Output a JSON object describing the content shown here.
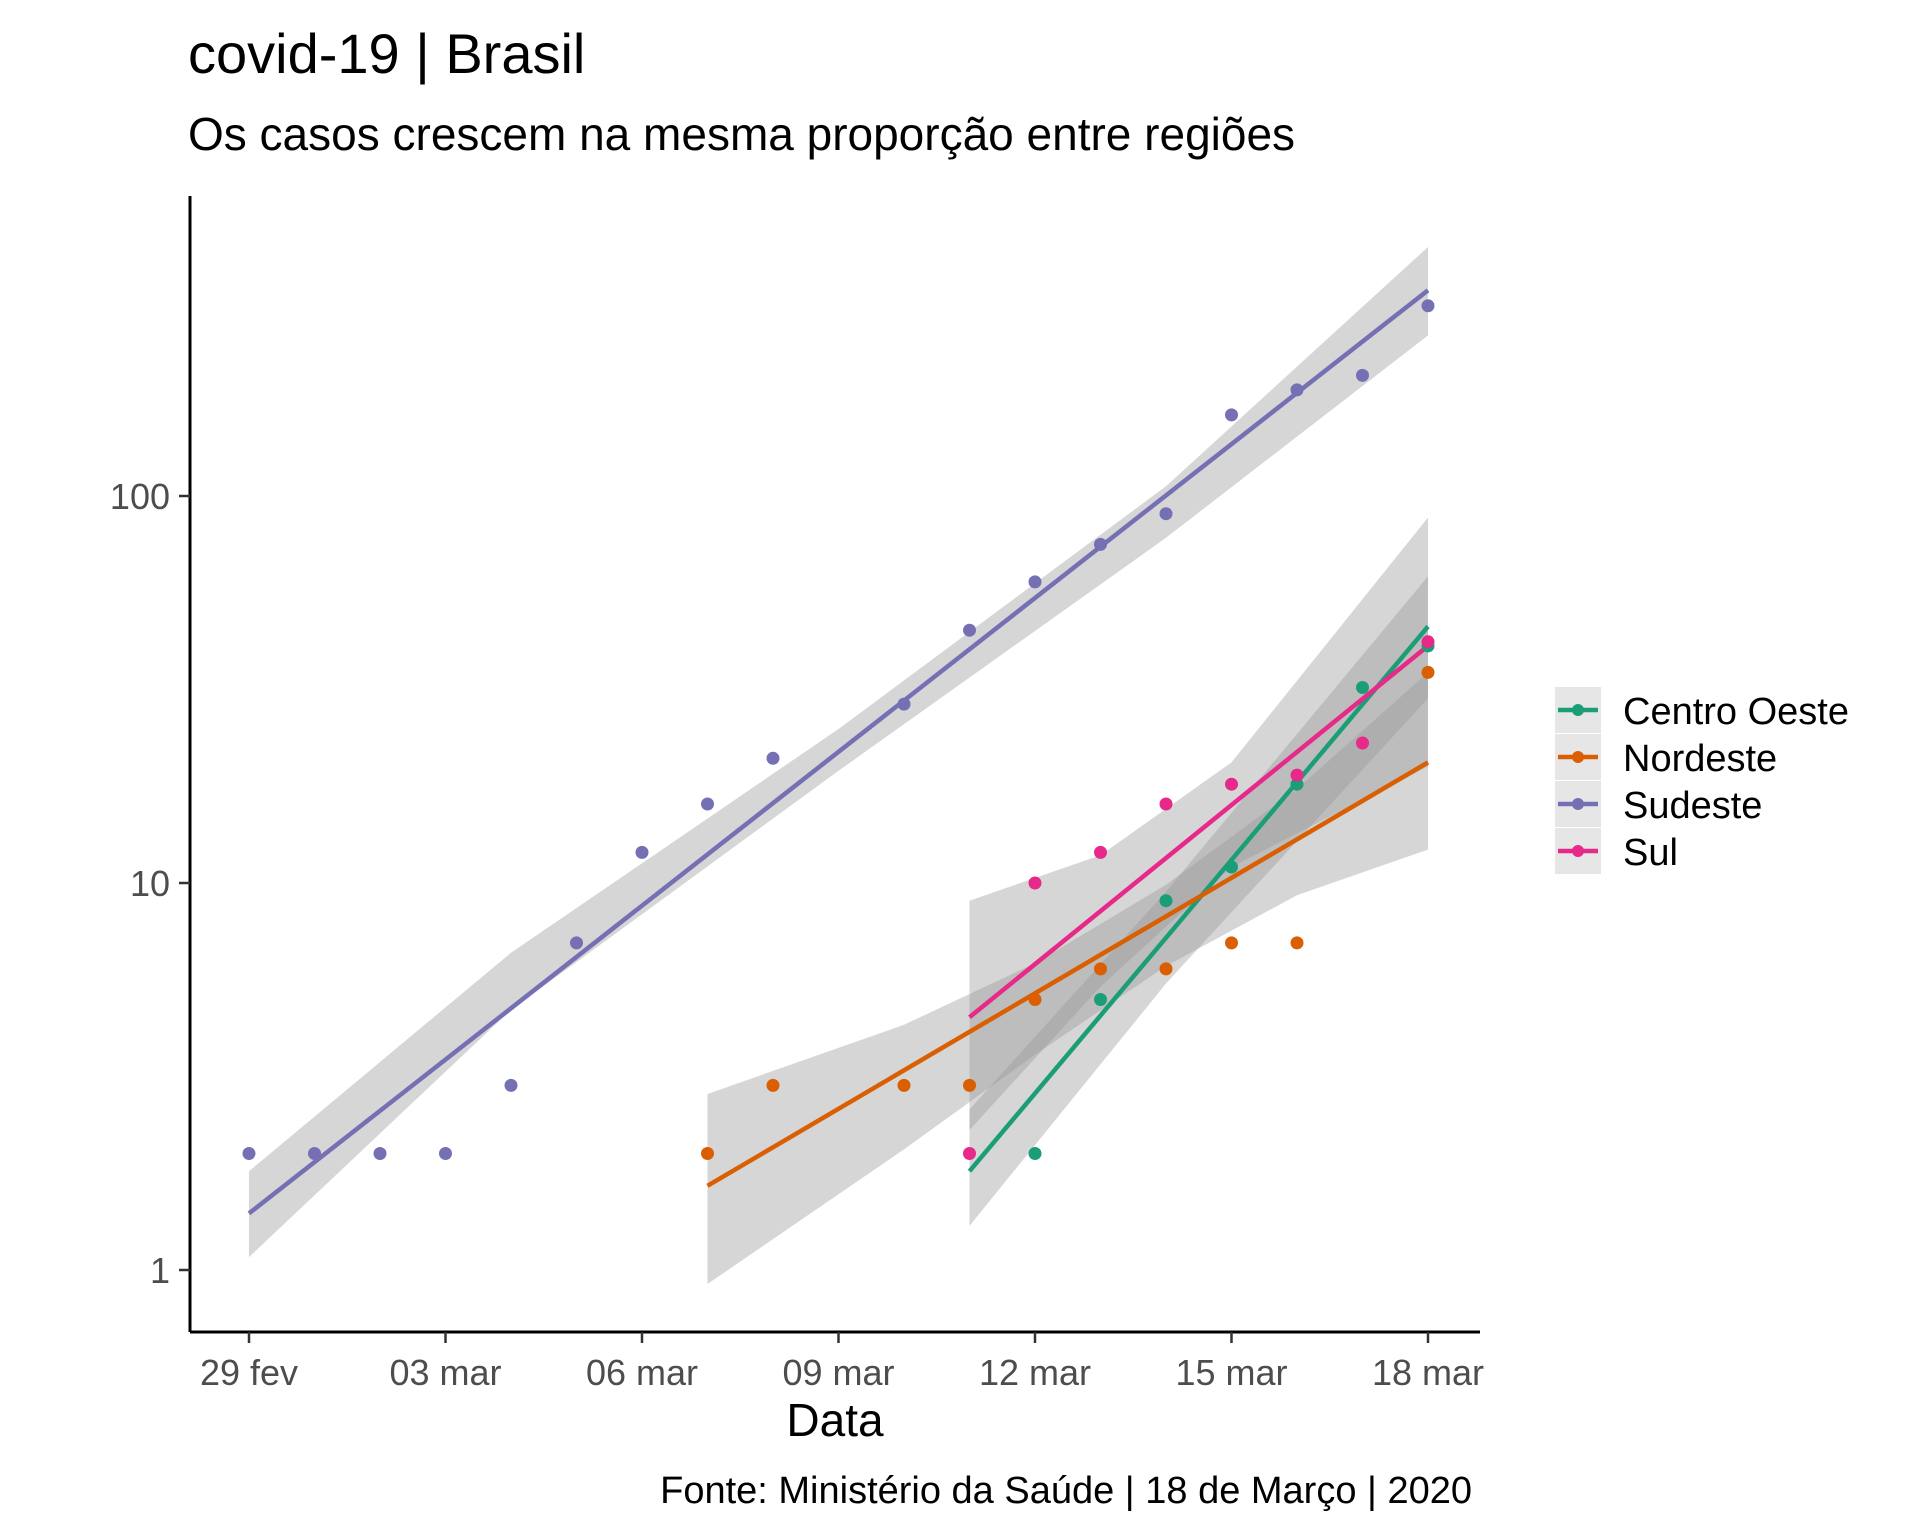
{
  "title": "covid-19 | Brasil",
  "subtitle": "Os casos crescem na mesma proporção entre regiões",
  "caption": "Fonte: Ministério da Saúde | 18 de Março | 2020",
  "chart_data": {
    "type": "scatter",
    "title": "covid-19 | Brasil",
    "subtitle": "Os casos crescem na mesma proporção entre regiões",
    "xlabel": "Data",
    "ylabel": "",
    "y_scale": "log10",
    "x_ticks": [
      "29 fev",
      "03 mar",
      "06 mar",
      "09 mar",
      "12 mar",
      "15 mar",
      "18 mar"
    ],
    "x_tick_dates": [
      "2020-02-29",
      "2020-03-03",
      "2020-03-06",
      "2020-03-09",
      "2020-03-12",
      "2020-03-15",
      "2020-03-18"
    ],
    "y_ticks": [
      1,
      10,
      100
    ],
    "y_tick_labels": [
      "1",
      "10",
      "100"
    ],
    "xlim": [
      "2020-02-28",
      "2020-03-18"
    ],
    "ylim": [
      0.68,
      580
    ],
    "grid": false,
    "legend_position": "right",
    "smoothing": "linear fit on log scale with grey confidence band",
    "series": [
      {
        "name": "Centro Oeste",
        "color": "#1b9e77",
        "points": [
          {
            "x": "2020-03-12",
            "y": 2
          },
          {
            "x": "2020-03-13",
            "y": 5
          },
          {
            "x": "2020-03-14",
            "y": 9
          },
          {
            "x": "2020-03-15",
            "y": 11
          },
          {
            "x": "2020-03-16",
            "y": 18
          },
          {
            "x": "2020-03-17",
            "y": 32
          },
          {
            "x": "2020-03-18",
            "y": 41
          }
        ],
        "fit": [
          {
            "x": "2020-03-11",
            "y": 1.8
          },
          {
            "x": "2020-03-18",
            "y": 46
          }
        ],
        "band": [
          {
            "x": "2020-03-11",
            "lo": 1.3,
            "hi": 2.6
          },
          {
            "x": "2020-03-14",
            "lo": 5.5,
            "hi": 9.5
          },
          {
            "x": "2020-03-18",
            "lo": 30,
            "hi": 62
          }
        ]
      },
      {
        "name": "Nordeste",
        "color": "#d95f02",
        "points": [
          {
            "x": "2020-03-07",
            "y": 2
          },
          {
            "x": "2020-03-08",
            "y": 3
          },
          {
            "x": "2020-03-10",
            "y": 3
          },
          {
            "x": "2020-03-11",
            "y": 3
          },
          {
            "x": "2020-03-12",
            "y": 5
          },
          {
            "x": "2020-03-13",
            "y": 6
          },
          {
            "x": "2020-03-14",
            "y": 6
          },
          {
            "x": "2020-03-15",
            "y": 7
          },
          {
            "x": "2020-03-16",
            "y": 7
          },
          {
            "x": "2020-03-18",
            "y": 35
          }
        ],
        "fit": [
          {
            "x": "2020-03-07",
            "y": 1.65
          },
          {
            "x": "2020-03-18",
            "y": 20.5
          }
        ],
        "band": [
          {
            "x": "2020-03-07",
            "lo": 0.92,
            "hi": 2.85
          },
          {
            "x": "2020-03-10",
            "lo": 2.05,
            "hi": 4.3
          },
          {
            "x": "2020-03-12",
            "lo": 3.6,
            "hi": 6.2
          },
          {
            "x": "2020-03-14",
            "lo": 6.1,
            "hi": 9.9
          },
          {
            "x": "2020-03-16",
            "lo": 9.3,
            "hi": 17.5
          },
          {
            "x": "2020-03-18",
            "lo": 12.2,
            "hi": 35
          }
        ]
      },
      {
        "name": "Sudeste",
        "color": "#7570b3",
        "points": [
          {
            "x": "2020-02-29",
            "y": 2
          },
          {
            "x": "2020-03-01",
            "y": 2
          },
          {
            "x": "2020-03-02",
            "y": 2
          },
          {
            "x": "2020-03-03",
            "y": 2
          },
          {
            "x": "2020-03-04",
            "y": 3
          },
          {
            "x": "2020-03-05",
            "y": 7
          },
          {
            "x": "2020-03-06",
            "y": 12
          },
          {
            "x": "2020-03-07",
            "y": 16
          },
          {
            "x": "2020-03-08",
            "y": 21
          },
          {
            "x": "2020-03-10",
            "y": 29
          },
          {
            "x": "2020-03-11",
            "y": 45
          },
          {
            "x": "2020-03-12",
            "y": 60
          },
          {
            "x": "2020-03-13",
            "y": 75
          },
          {
            "x": "2020-03-14",
            "y": 90
          },
          {
            "x": "2020-03-15",
            "y": 162
          },
          {
            "x": "2020-03-16",
            "y": 188
          },
          {
            "x": "2020-03-17",
            "y": 205
          },
          {
            "x": "2020-03-18",
            "y": 310
          }
        ],
        "fit": [
          {
            "x": "2020-02-29",
            "y": 1.4
          },
          {
            "x": "2020-03-18",
            "y": 340
          }
        ],
        "band": [
          {
            "x": "2020-02-29",
            "lo": 1.08,
            "hi": 1.8
          },
          {
            "x": "2020-03-04",
            "lo": 4.7,
            "hi": 6.6
          },
          {
            "x": "2020-03-09",
            "lo": 19.5,
            "hi": 25
          },
          {
            "x": "2020-03-14",
            "lo": 78,
            "hi": 106
          },
          {
            "x": "2020-03-18",
            "lo": 260,
            "hi": 440
          }
        ]
      },
      {
        "name": "Sul",
        "color": "#e7298a",
        "points": [
          {
            "x": "2020-03-11",
            "y": 2
          },
          {
            "x": "2020-03-12",
            "y": 10
          },
          {
            "x": "2020-03-13",
            "y": 12
          },
          {
            "x": "2020-03-14",
            "y": 16
          },
          {
            "x": "2020-03-15",
            "y": 18
          },
          {
            "x": "2020-03-16",
            "y": 19
          },
          {
            "x": "2020-03-17",
            "y": 23
          },
          {
            "x": "2020-03-18",
            "y": 42
          }
        ],
        "fit": [
          {
            "x": "2020-03-11",
            "y": 4.5
          },
          {
            "x": "2020-03-18",
            "y": 41
          }
        ],
        "band": [
          {
            "x": "2020-03-11",
            "lo": 2.3,
            "hi": 9.0
          },
          {
            "x": "2020-03-13",
            "lo": 5.4,
            "hi": 11.8
          },
          {
            "x": "2020-03-15",
            "lo": 11.0,
            "hi": 20.5
          },
          {
            "x": "2020-03-18",
            "lo": 20,
            "hi": 88
          }
        ]
      }
    ]
  }
}
